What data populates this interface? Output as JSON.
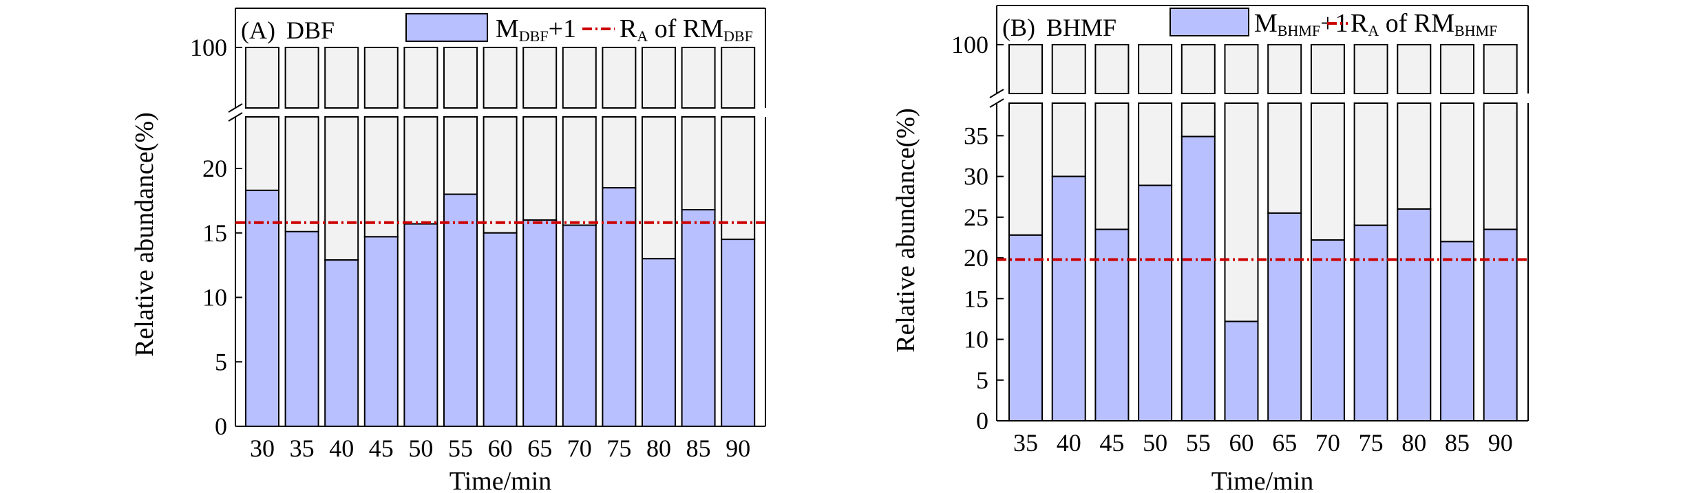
{
  "chart_data": [
    {
      "type": "bar",
      "stacked": true,
      "broken_y_axis": true,
      "panel_label": "(A)",
      "title": "DBF",
      "categories": [
        "30",
        "35",
        "40",
        "45",
        "50",
        "55",
        "60",
        "65",
        "70",
        "75",
        "80",
        "85",
        "90"
      ],
      "series": [
        {
          "name": "MDBF+1",
          "values": [
            18.3,
            15.1,
            12.9,
            14.7,
            15.7,
            18.0,
            15.0,
            16.0,
            15.6,
            18.5,
            13.0,
            16.8,
            14.5
          ]
        }
      ],
      "total_value": 100,
      "reference_line": {
        "name": "RA of RMDBF",
        "value": 15.8
      },
      "legend": {
        "bar": {
          "main": "M",
          "sub": "DBF",
          "suffix": "+1"
        },
        "line": {
          "main": "R",
          "sub": "A",
          "mid": " of RM",
          "sub2": "DBF"
        }
      },
      "xlabel": "Time/min",
      "ylabel": "Relative abundance(%)",
      "lower_ylim": [
        0,
        24
      ],
      "upper_ylim": [
        99,
        100
      ],
      "yticks_lower": [
        "0",
        "5",
        "10",
        "15",
        "20"
      ],
      "yticks_upper": [
        "100"
      ]
    },
    {
      "type": "bar",
      "stacked": true,
      "broken_y_axis": true,
      "panel_label": "(B)",
      "title": "BHMF",
      "categories": [
        "35",
        "40",
        "45",
        "50",
        "55",
        "60",
        "65",
        "70",
        "75",
        "80",
        "85",
        "90"
      ],
      "series": [
        {
          "name": "MBHMF+1",
          "values": [
            22.8,
            30.0,
            23.5,
            28.9,
            34.9,
            12.2,
            25.5,
            22.2,
            24.0,
            26.0,
            22.0,
            23.5
          ]
        }
      ],
      "total_value": 100,
      "reference_line": {
        "name": "RA of RMBHMF",
        "value": 19.8
      },
      "legend": {
        "bar": {
          "main": "M",
          "sub": "BHMF",
          "suffix": "+1"
        },
        "line": {
          "main": "R",
          "sub": "A",
          "mid": " of RM",
          "sub2": "BHMF"
        }
      },
      "xlabel": "Time/min",
      "ylabel": "Relative abundance(%)",
      "lower_ylim": [
        0,
        39
      ],
      "upper_ylim": [
        99,
        100
      ],
      "yticks_lower": [
        "0",
        "5",
        "10",
        "15",
        "20",
        "25",
        "30",
        "35"
      ],
      "yticks_upper": [
        "100"
      ]
    }
  ],
  "colors": {
    "bar_fill": "#b9c0ff",
    "remainder_fill": "#f2f2f2",
    "bar_stroke": "#000000",
    "ref_line": "#cc0000"
  }
}
